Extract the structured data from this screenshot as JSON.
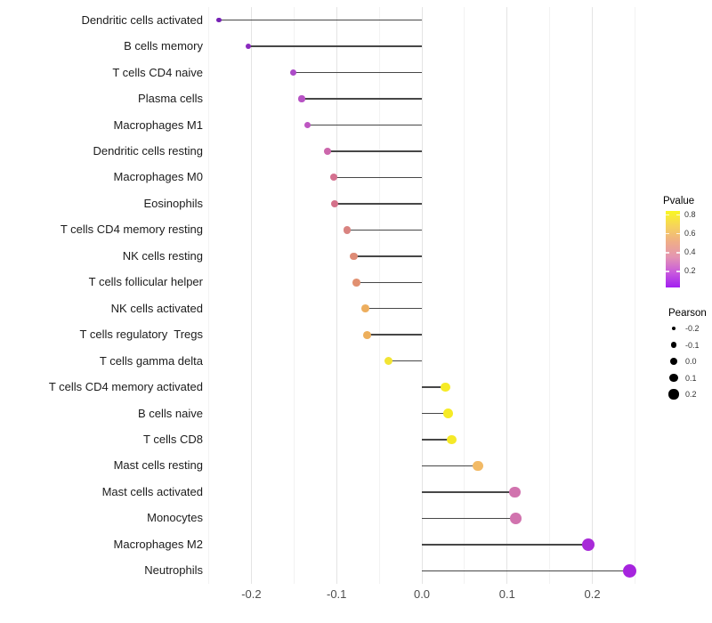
{
  "chart_data": {
    "type": "scatter",
    "subtype": "lollipop",
    "title": "",
    "xlabel": "",
    "ylabel": "",
    "xlim": [
      -0.26,
      0.257
    ],
    "x_ticks": [
      "-0.2",
      "-0.1",
      "0.0",
      "0.1",
      "0.2"
    ],
    "x_tick_values": [
      -0.2,
      -0.1,
      0.0,
      0.1,
      0.2
    ],
    "grid": {
      "orientation": "vertical",
      "major_step": 0.1,
      "minor_step": 0.05,
      "range": [
        -0.25,
        0.25
      ]
    },
    "legend_position": "right",
    "stem_origin": 0.0,
    "stem_color": "#474747",
    "points": [
      {
        "label": "Dendritic cells activated",
        "pearson": -0.238,
        "pvalue_est": 0.06,
        "color": "#7621B5"
      },
      {
        "label": "B cells memory",
        "pearson": -0.204,
        "pvalue_est": 0.09,
        "color": "#8A2ABE"
      },
      {
        "label": "T cells CD4 naive",
        "pearson": -0.151,
        "pvalue_est": 0.16,
        "color": "#AC4AC8"
      },
      {
        "label": "Plasma cells",
        "pearson": -0.141,
        "pvalue_est": 0.18,
        "color": "#B752C4"
      },
      {
        "label": "Macrophages M1",
        "pearson": -0.134,
        "pvalue_est": 0.2,
        "color": "#BE56C2"
      },
      {
        "label": "Dendritic cells resting",
        "pearson": -0.111,
        "pvalue_est": 0.28,
        "color": "#CC67AC"
      },
      {
        "label": "Macrophages M0",
        "pearson": -0.103,
        "pvalue_est": 0.34,
        "color": "#D4708F"
      },
      {
        "label": "Eosinophils",
        "pearson": -0.102,
        "pvalue_est": 0.35,
        "color": "#D4718A"
      },
      {
        "label": "T cells CD4 memory resting",
        "pearson": -0.088,
        "pvalue_est": 0.42,
        "color": "#D98380"
      },
      {
        "label": "NK cells resting",
        "pearson": -0.08,
        "pvalue_est": 0.45,
        "color": "#DE8B76"
      },
      {
        "label": "T cells follicular helper",
        "pearson": -0.077,
        "pvalue_est": 0.47,
        "color": "#E19070"
      },
      {
        "label": "NK cells activated",
        "pearson": -0.066,
        "pvalue_est": 0.58,
        "color": "#EDAE5E"
      },
      {
        "label": "T cells regulatory  Tregs",
        "pearson": -0.064,
        "pvalue_est": 0.58,
        "color": "#EDAF5C"
      },
      {
        "label": "T cells gamma delta",
        "pearson": -0.039,
        "pvalue_est": 0.76,
        "color": "#F2E433"
      },
      {
        "label": "T cells CD4 memory activated",
        "pearson": 0.028,
        "pvalue_est": 0.8,
        "color": "#F6EB26"
      },
      {
        "label": "B cells naive",
        "pearson": 0.031,
        "pvalue_est": 0.8,
        "color": "#F6EB26"
      },
      {
        "label": "T cells CD8",
        "pearson": 0.035,
        "pvalue_est": 0.79,
        "color": "#F5E928"
      },
      {
        "label": "Mast cells resting",
        "pearson": 0.066,
        "pvalue_est": 0.62,
        "color": "#F2BA66"
      },
      {
        "label": "Mast cells activated",
        "pearson": 0.109,
        "pvalue_est": 0.3,
        "color": "#D173AE"
      },
      {
        "label": "Monocytes",
        "pearson": 0.11,
        "pvalue_est": 0.3,
        "color": "#D173AE"
      },
      {
        "label": "Macrophages M2",
        "pearson": 0.195,
        "pvalue_est": 0.1,
        "color": "#A82BD8"
      },
      {
        "label": "Neutrophils",
        "pearson": 0.244,
        "pvalue_est": 0.08,
        "color": "#A624DE"
      }
    ],
    "legends": {
      "color": {
        "title": "Pvalue",
        "tick_labels": [
          "0.8",
          "0.6",
          "0.4",
          "0.2"
        ],
        "range": [
          0.02,
          0.82
        ],
        "gradient_top_to_bottom": [
          "#F9F722",
          "#F6D35C",
          "#EFAE87",
          "#E495B2",
          "#C95BDC",
          "#A21FF1"
        ]
      },
      "size": {
        "title": "Pearson",
        "labels": [
          "-0.2",
          "-0.1",
          "0.0",
          "0.1",
          "0.2"
        ],
        "values": [
          -0.2,
          -0.1,
          0.0,
          0.1,
          0.2
        ]
      }
    }
  }
}
